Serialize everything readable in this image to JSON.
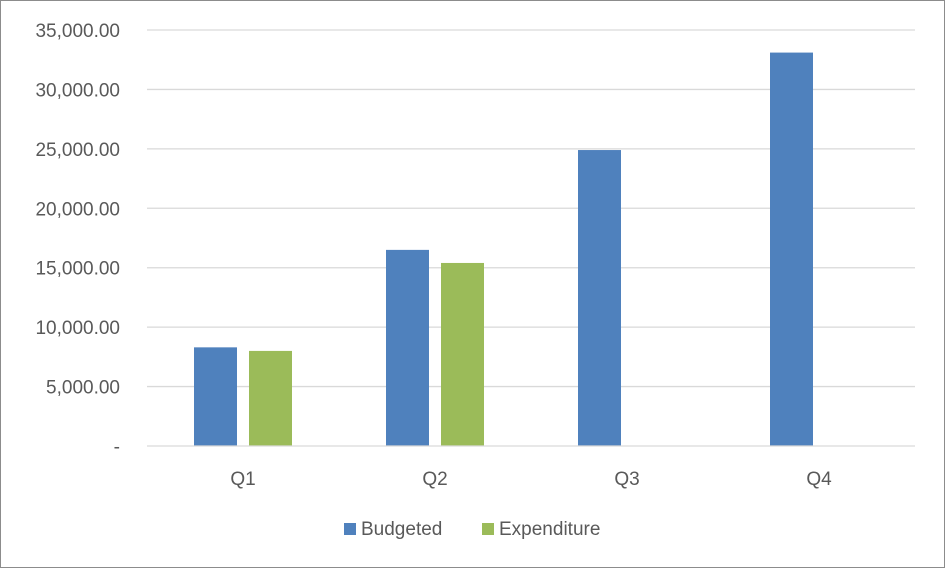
{
  "chart_data": {
    "type": "bar",
    "title": "",
    "xlabel": "",
    "ylabel": "",
    "categories": [
      "Q1",
      "Q2",
      "Q3",
      "Q4"
    ],
    "series": [
      {
        "name": "Budgeted",
        "color": "#4f81bd",
        "values": [
          8300,
          16500,
          24900,
          33100
        ]
      },
      {
        "name": "Expenditure",
        "color": "#9bbb59",
        "values": [
          8000,
          15400,
          null,
          null
        ]
      }
    ],
    "ylim": [
      0,
      35000
    ],
    "yticks": [
      {
        "value": 0,
        "label": "-"
      },
      {
        "value": 5000,
        "label": "5,000.00"
      },
      {
        "value": 10000,
        "label": "10,000.00"
      },
      {
        "value": 15000,
        "label": "15,000.00"
      },
      {
        "value": 20000,
        "label": "20,000.00"
      },
      {
        "value": 25000,
        "label": "25,000.00"
      },
      {
        "value": 30000,
        "label": "30,000.00"
      },
      {
        "value": 35000,
        "label": "35,000.00"
      }
    ],
    "grid": true,
    "gridline_color": "#d9d9d9",
    "legend_position": "bottom"
  }
}
